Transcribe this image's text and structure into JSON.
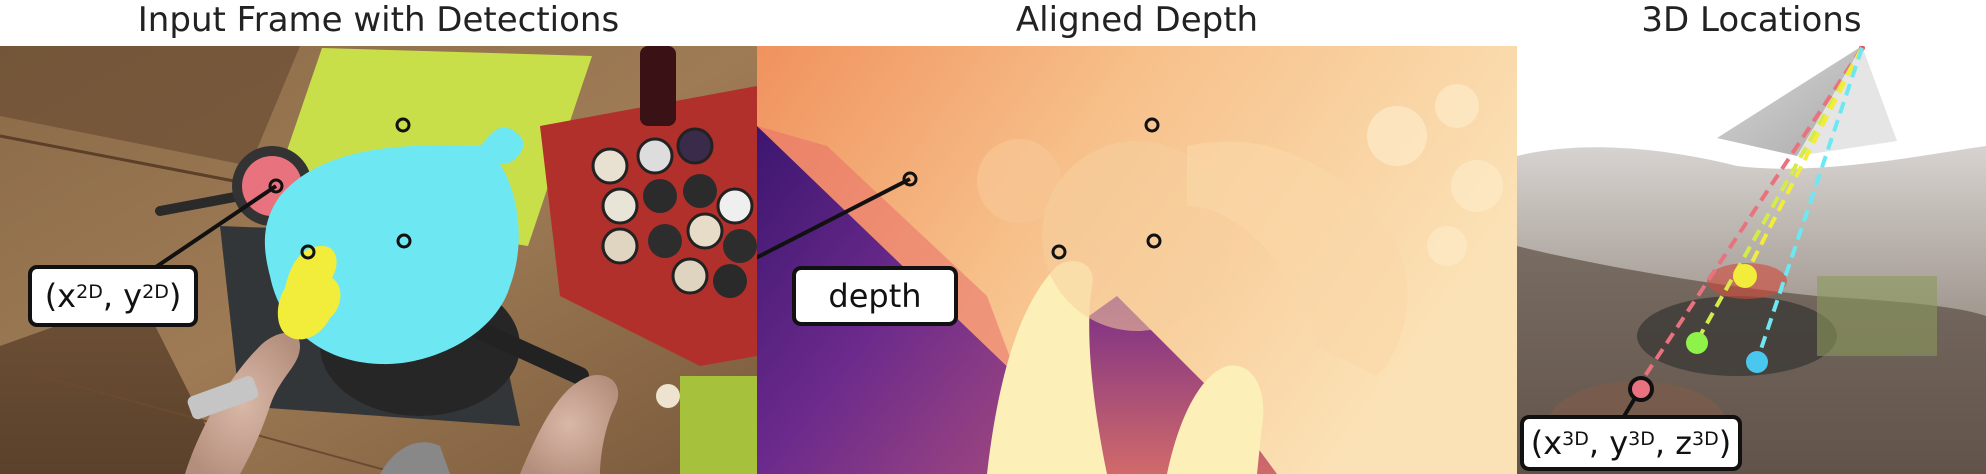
{
  "titles": {
    "left": "Input Frame with Detections",
    "middle": "Aligned Depth",
    "right": "3D Locations"
  },
  "labels": {
    "coord2d": {
      "open": "(x",
      "sup1": "2D",
      "mid": ", y",
      "sup2": "2D",
      "close": ")"
    },
    "depth": "depth",
    "coord3d": {
      "open": "(x",
      "sup1": "3D",
      "mid1": ", y",
      "sup2": "3D",
      "mid2": ", z",
      "sup3": "3D",
      "close": ")"
    }
  },
  "colors": {
    "detection_cyan": "#6de8f2",
    "detection_yellow": "#f2ec3a",
    "detection_pink": "#e8727e",
    "board_green": "#c9df4a",
    "dot_green": "#8ef24a",
    "dot_cyan": "#49c7ef"
  }
}
